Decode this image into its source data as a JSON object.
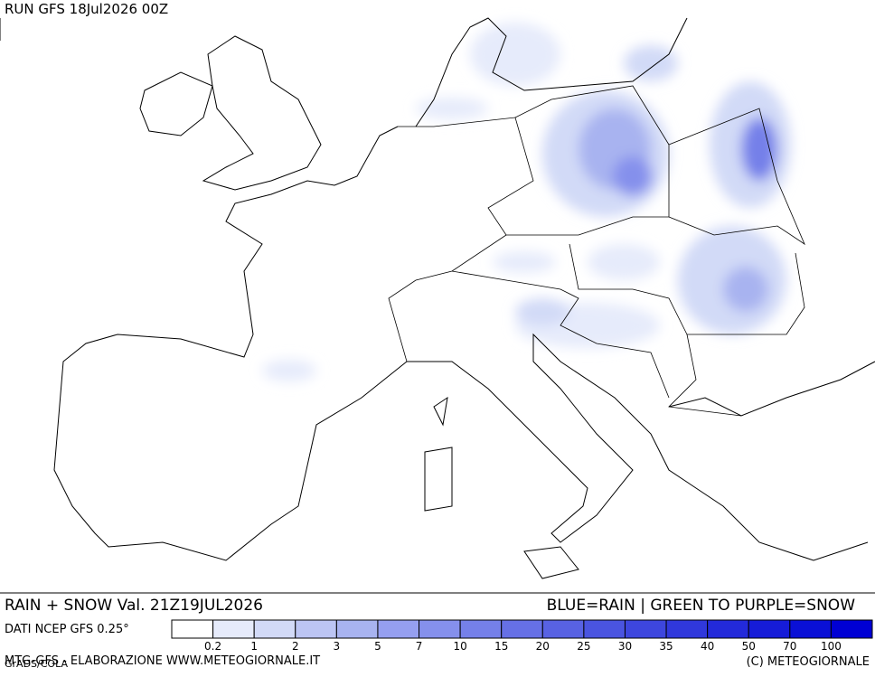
{
  "header": {
    "run": "RUN GFS 18Jul2026 00Z"
  },
  "footer": {
    "title": "RAIN + SNOW Val. 21Z19JUL2026",
    "key": "BLUE=RAIN | GREEN TO PURPLE=SNOW",
    "source": "DATI NCEP GFS 0.25°",
    "credit": "MTG-GFS - ELABORAZIONE WWW.METEOGIORNALE.IT",
    "software": "GrADS/COLA",
    "copyright": "(C) METEOGIORNALE"
  },
  "legend": {
    "labels": [
      0.2,
      1,
      2,
      3,
      5,
      7,
      10,
      15,
      20,
      25,
      30,
      35,
      40,
      50,
      70,
      100
    ],
    "colors": [
      "#ffffff",
      "#e6ebfb",
      "#d2daf7",
      "#bcc5f3",
      "#a8b3f0",
      "#959ff0",
      "#8590ec",
      "#7580e9",
      "#6670e6",
      "#5862e3",
      "#4a54e0",
      "#3d46de",
      "#3038dc",
      "#232ada",
      "#161cd8",
      "#0a10d6",
      "#0000d4"
    ]
  }
}
